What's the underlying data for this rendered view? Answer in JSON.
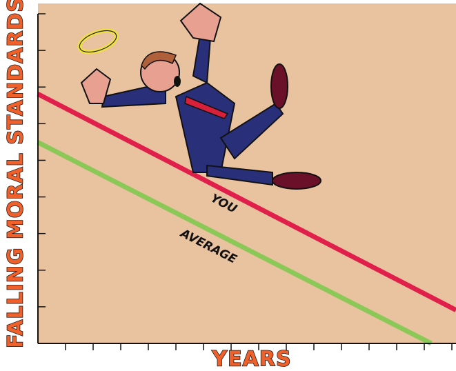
{
  "chart_data": {
    "type": "line",
    "x_label": "YEARS",
    "y_label": "FALLING MORAL STANDARDS",
    "xlim": [
      0,
      15.15
    ],
    "ylim": [
      0,
      9.0
    ],
    "xticks": [
      1,
      2,
      3,
      4,
      5,
      6,
      7,
      8,
      9,
      10,
      11,
      12,
      13,
      14,
      15
    ],
    "yticks": [
      1,
      2,
      3,
      4,
      5,
      6,
      7,
      8,
      9
    ],
    "series": [
      {
        "name": "YOU",
        "color": "#e0204a",
        "x": [
          0,
          15.15
        ],
        "values": [
          6.81,
          0.91
        ]
      },
      {
        "name": "AVERAGE",
        "color": "#8cc858",
        "x": [
          0,
          14.25
        ],
        "values": [
          5.49,
          0
        ]
      }
    ]
  }
}
